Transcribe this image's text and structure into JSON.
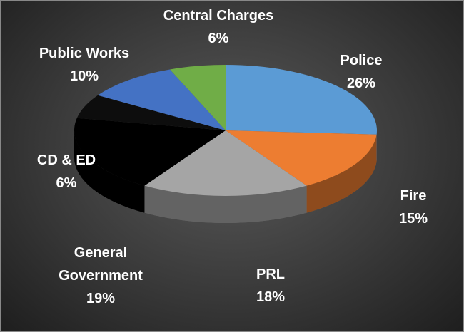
{
  "chart_data": {
    "type": "pie3d",
    "categories": [
      "Police",
      "Fire",
      "PRL",
      "General Government",
      "CD & ED",
      "Public Works",
      "Central Charges"
    ],
    "values": [
      26,
      15,
      18,
      19,
      6,
      10,
      6
    ],
    "value_labels": [
      "26%",
      "15%",
      "18%",
      "19%",
      "6%",
      "10%",
      "6%"
    ],
    "colors": [
      "#5b9bd5",
      "#ed7d31",
      "#a5a5a5",
      "#000000",
      "#0d0d0d",
      "#4472c4",
      "#70ad47"
    ]
  }
}
